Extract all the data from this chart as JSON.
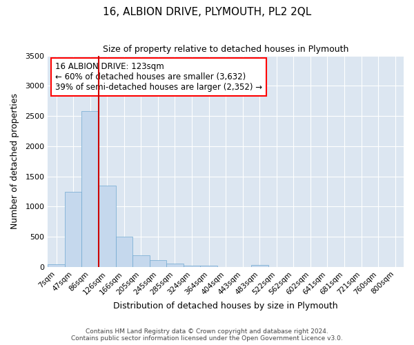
{
  "title": "16, ALBION DRIVE, PLYMOUTH, PL2 2QL",
  "subtitle": "Size of property relative to detached houses in Plymouth",
  "xlabel": "Distribution of detached houses by size in Plymouth",
  "ylabel": "Number of detached properties",
  "footer_line1": "Contains HM Land Registry data © Crown copyright and database right 2024.",
  "footer_line2": "Contains public sector information licensed under the Open Government Licence v3.0.",
  "bar_color": "#c5d8ed",
  "bar_edge_color": "#6fa8d0",
  "background_color": "#dce6f1",
  "grid_color": "#ffffff",
  "annotation_text": "16 ALBION DRIVE: 123sqm\n← 60% of detached houses are smaller (3,632)\n39% of semi-detached houses are larger (2,352) →",
  "vline_color": "#cc0000",
  "categories": [
    "7sqm",
    "47sqm",
    "86sqm",
    "126sqm",
    "166sqm",
    "205sqm",
    "245sqm",
    "285sqm",
    "324sqm",
    "364sqm",
    "404sqm",
    "443sqm",
    "483sqm",
    "522sqm",
    "562sqm",
    "602sqm",
    "641sqm",
    "681sqm",
    "721sqm",
    "760sqm",
    "800sqm"
  ],
  "bar_heights": [
    50,
    1240,
    2580,
    1350,
    500,
    195,
    115,
    55,
    25,
    18,
    0,
    0,
    30,
    0,
    0,
    0,
    0,
    0,
    0,
    0,
    0
  ],
  "ylim": [
    0,
    3500
  ],
  "yticks": [
    0,
    500,
    1000,
    1500,
    2000,
    2500,
    3000,
    3500
  ],
  "vline_index": 3
}
